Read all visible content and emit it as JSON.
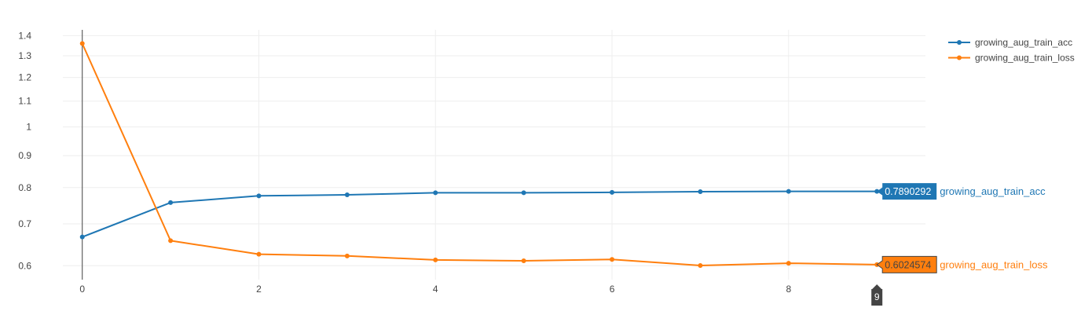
{
  "chart_data": {
    "type": "line",
    "x": [
      0,
      1,
      2,
      3,
      4,
      5,
      6,
      7,
      8,
      9
    ],
    "x_ticks": [
      "0",
      "2",
      "4",
      "6",
      "8"
    ],
    "xlim": [
      -0.22,
      9.55
    ],
    "y_scale": "log",
    "y_ticks": [
      "0.6",
      "0.7",
      "0.8",
      "0.9",
      "1",
      "1.1",
      "1.2",
      "1.3",
      "1.4"
    ],
    "ylim": [
      0.57,
      1.43
    ],
    "grid": true,
    "legend_position": "top-right",
    "series": [
      {
        "name": "growing_aug_train_acc",
        "color": "#1f77b4",
        "values": [
          0.667,
          0.757,
          0.776,
          0.779,
          0.785,
          0.785,
          0.786,
          0.788,
          0.789,
          0.7890292
        ]
      },
      {
        "name": "growing_aug_train_loss",
        "color": "#ff7f0e",
        "values": [
          1.36,
          0.658,
          0.626,
          0.622,
          0.613,
          0.611,
          0.614,
          0.6005,
          0.6055,
          0.6024574
        ]
      }
    ],
    "hover": {
      "x_label": "9",
      "spike_x": "0",
      "labels": [
        {
          "value_text": "0.7890292",
          "name": "growing_aug_train_acc",
          "color": "#1f77b4",
          "text_color": "#ffffff"
        },
        {
          "value_text": "0.6024574",
          "name": "growing_aug_train_loss",
          "color": "#ff7f0e",
          "text_color": "#444444"
        }
      ]
    }
  }
}
